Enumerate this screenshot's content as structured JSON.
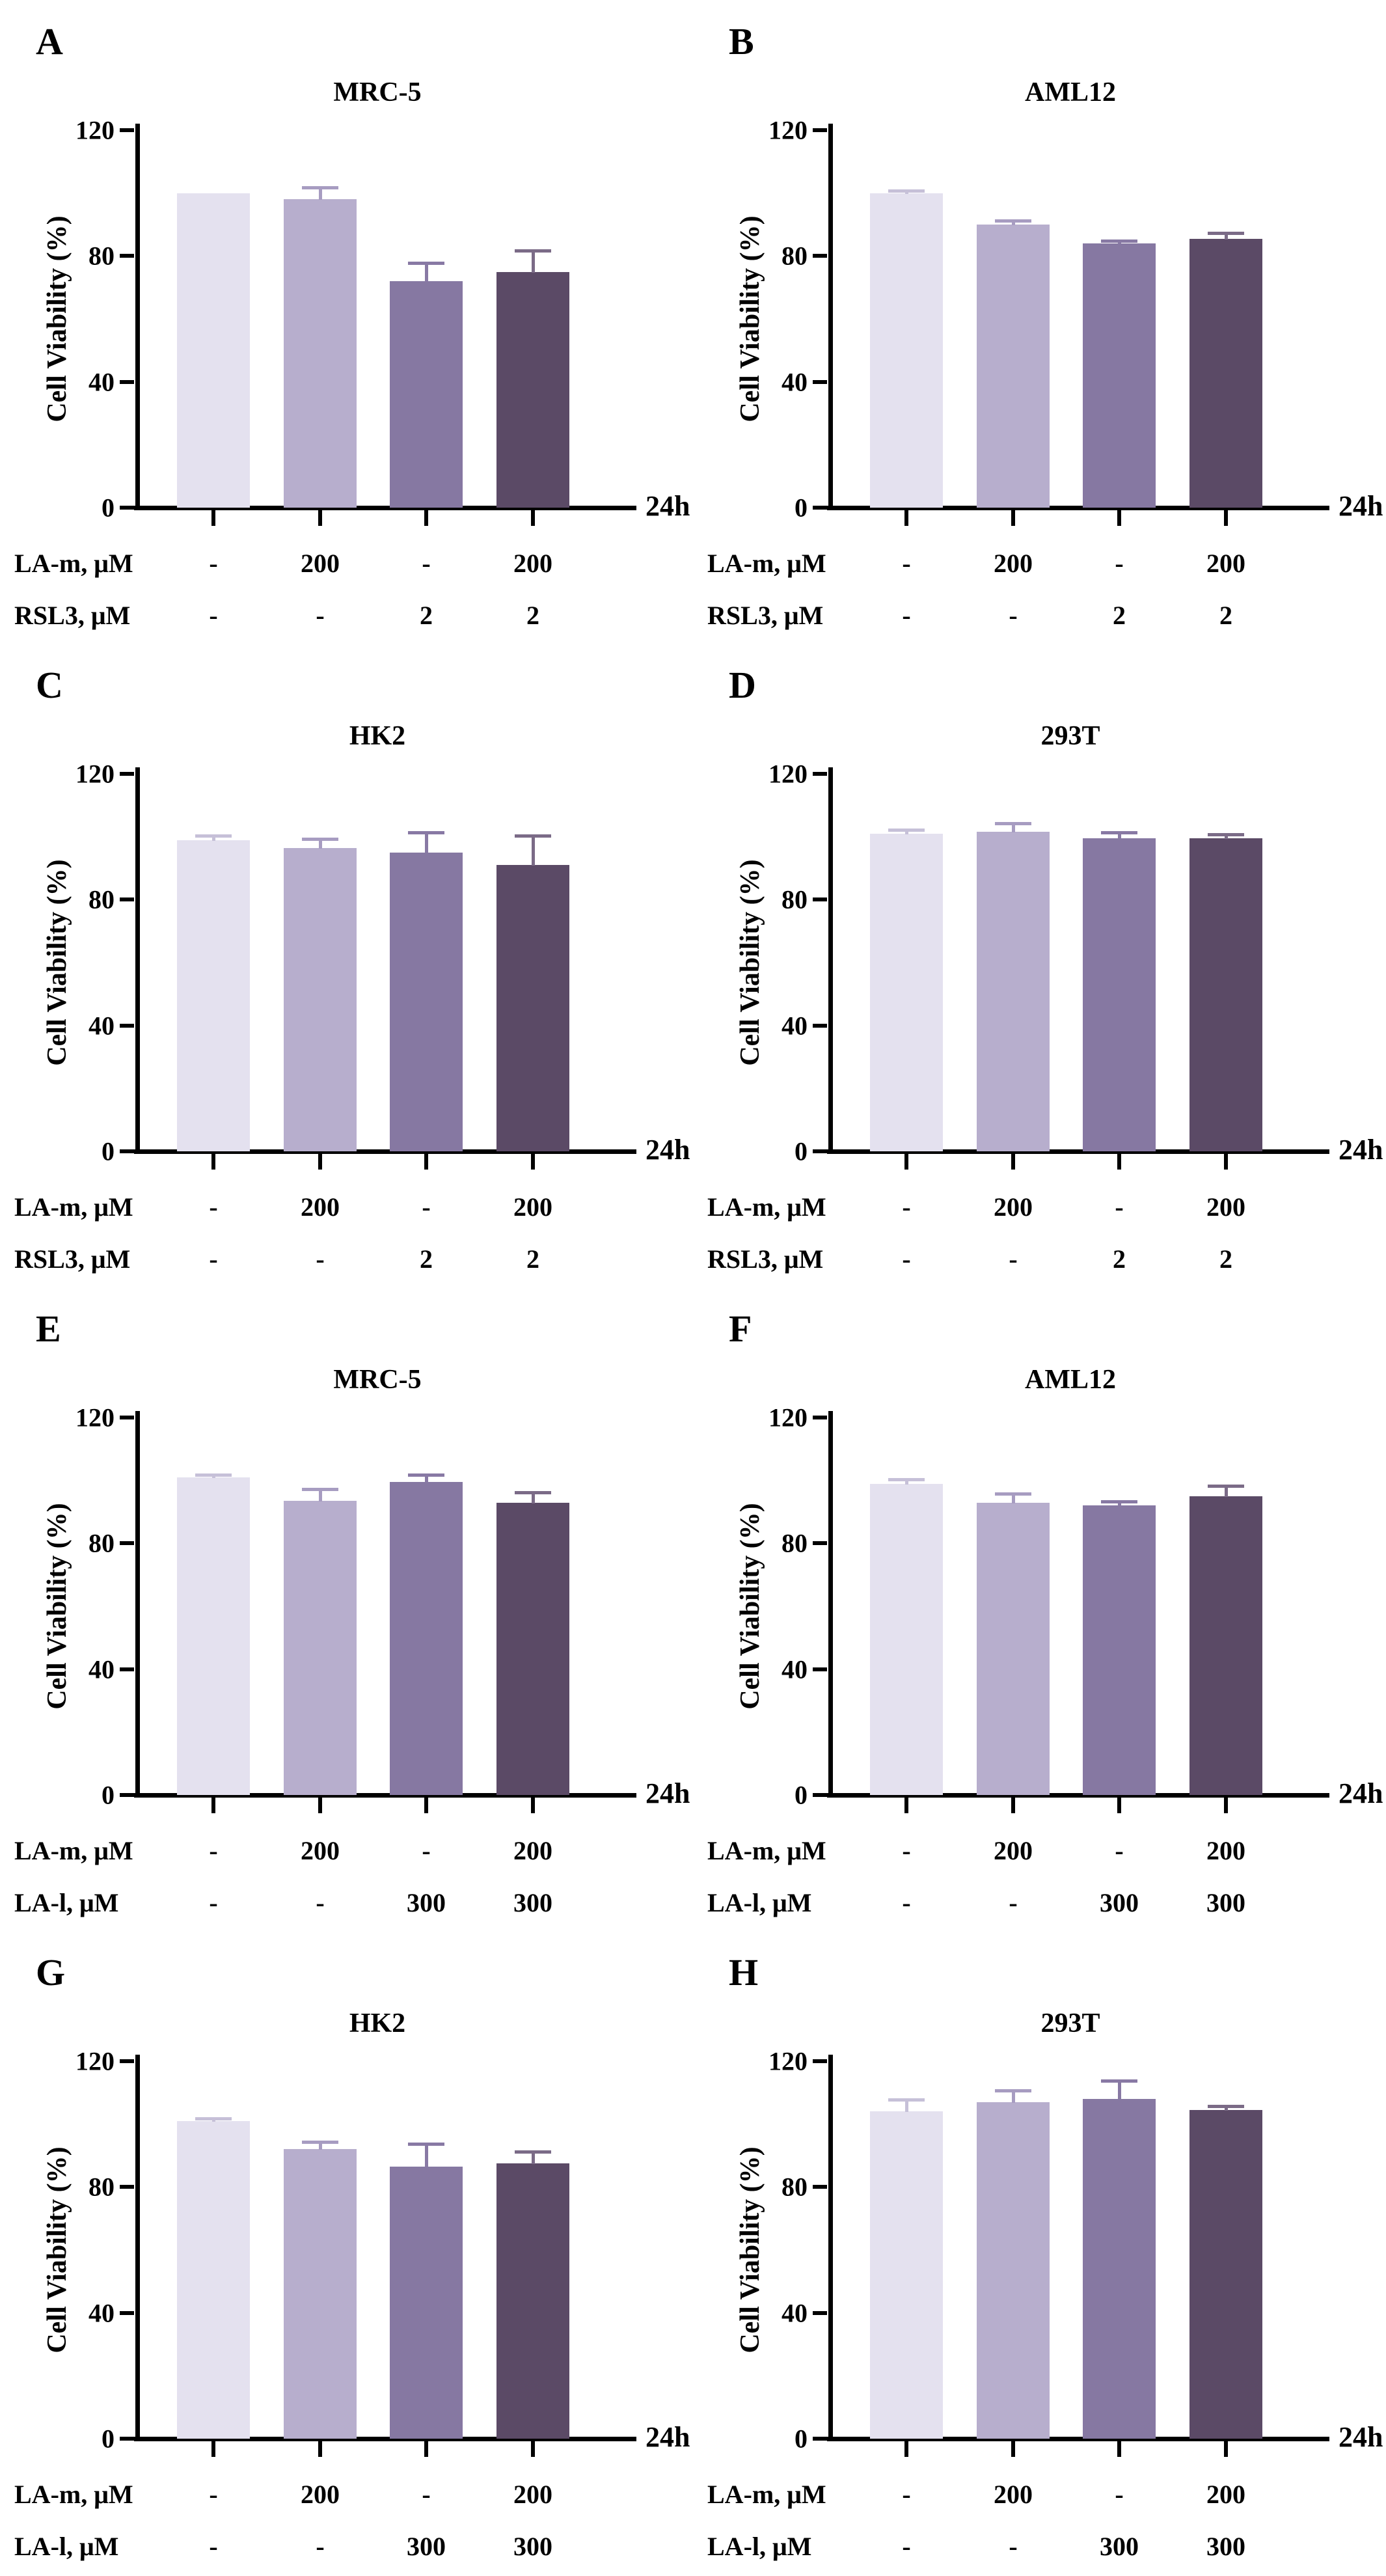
{
  "axis": {
    "ylabel": "Cell Viability (%)",
    "ytick_labels": [
      "120",
      "80",
      "40",
      "0"
    ],
    "time_label": "24h"
  },
  "bar_colors": [
    "#e4e1ef",
    "#b7aecd",
    "#8678a2",
    "#5b4a66"
  ],
  "error_colors": [
    "#c6c0d8",
    "#a79cc1",
    "#8879a4",
    "#7b6b87"
  ],
  "chart_data": [
    {
      "panel": "A",
      "type": "bar",
      "title": "MRC-5",
      "ylabel": "Cell Viability (%)",
      "ylim": [
        0,
        120
      ],
      "yticks": [
        0,
        40,
        80,
        120
      ],
      "x_time_label": "24h",
      "categories": [
        "control",
        "LA-m 200",
        "RSL3 2",
        "LA-m 200 + RSL3 2"
      ],
      "values": [
        100,
        98,
        72,
        75
      ],
      "errors": [
        0,
        4,
        6,
        7
      ],
      "dose_rows": [
        {
          "label": "LA-m, μM",
          "values": [
            "-",
            "200",
            "-",
            "200"
          ]
        },
        {
          "label": "RSL3, μM",
          "values": [
            "-",
            "-",
            "2",
            "2"
          ]
        }
      ]
    },
    {
      "panel": "B",
      "type": "bar",
      "title": "AML12",
      "ylabel": "Cell Viability (%)",
      "ylim": [
        0,
        120
      ],
      "yticks": [
        0,
        40,
        80,
        120
      ],
      "x_time_label": "24h",
      "categories": [
        "control",
        "LA-m 200",
        "RSL3 2",
        "LA-m 200 + RSL3 2"
      ],
      "values": [
        100,
        90,
        84,
        85.5
      ],
      "errors": [
        1,
        1.5,
        1,
        2
      ],
      "dose_rows": [
        {
          "label": "LA-m, μM",
          "values": [
            "-",
            "200",
            "-",
            "200"
          ]
        },
        {
          "label": "RSL3, μM",
          "values": [
            "-",
            "-",
            "2",
            "2"
          ]
        }
      ]
    },
    {
      "panel": "C",
      "type": "bar",
      "title": "HK2",
      "ylabel": "Cell Viability (%)",
      "ylim": [
        0,
        120
      ],
      "yticks": [
        0,
        40,
        80,
        120
      ],
      "x_time_label": "24h",
      "categories": [
        "control",
        "LA-m 200",
        "RSL3 2",
        "LA-m 200 + RSL3 2"
      ],
      "values": [
        99,
        96.5,
        95,
        91
      ],
      "errors": [
        1.5,
        3,
        6.5,
        9.5
      ],
      "dose_rows": [
        {
          "label": "LA-m, μM",
          "values": [
            "-",
            "200",
            "-",
            "200"
          ]
        },
        {
          "label": "RSL3, μM",
          "values": [
            "-",
            "-",
            "2",
            "2"
          ]
        }
      ]
    },
    {
      "panel": "D",
      "type": "bar",
      "title": "293T",
      "ylabel": "Cell Viability (%)",
      "ylim": [
        0,
        120
      ],
      "yticks": [
        0,
        40,
        80,
        120
      ],
      "x_time_label": "24h",
      "categories": [
        "control",
        "LA-m 200",
        "RSL3 2",
        "LA-m 200 + RSL3 2"
      ],
      "values": [
        101,
        101.5,
        99.5,
        99.5
      ],
      "errors": [
        1.5,
        3,
        2,
        1.5
      ],
      "dose_rows": [
        {
          "label": "LA-m, μM",
          "values": [
            "-",
            "200",
            "-",
            "200"
          ]
        },
        {
          "label": "RSL3, μM",
          "values": [
            "-",
            "-",
            "2",
            "2"
          ]
        }
      ]
    },
    {
      "panel": "E",
      "type": "bar",
      "title": "MRC-5",
      "ylabel": "Cell Viability (%)",
      "ylim": [
        0,
        120
      ],
      "yticks": [
        0,
        40,
        80,
        120
      ],
      "x_time_label": "24h",
      "categories": [
        "control",
        "LA-m 200",
        "LA-l 300",
        "LA-m 200 + LA-l 300"
      ],
      "values": [
        101,
        93.5,
        99.5,
        93
      ],
      "errors": [
        1,
        4,
        2.5,
        3.5
      ],
      "dose_rows": [
        {
          "label": "LA-m, μM",
          "values": [
            "-",
            "200",
            "-",
            "200"
          ]
        },
        {
          "label": "LA-l, μM",
          "values": [
            "-",
            "-",
            "300",
            "300"
          ]
        }
      ]
    },
    {
      "panel": "F",
      "type": "bar",
      "title": "AML12",
      "ylabel": "Cell Viability (%)",
      "ylim": [
        0,
        120
      ],
      "yticks": [
        0,
        40,
        80,
        120
      ],
      "x_time_label": "24h",
      "categories": [
        "control",
        "LA-m 200",
        "LA-l 300",
        "LA-m 200 + LA-l 300"
      ],
      "values": [
        99,
        93,
        92,
        95
      ],
      "errors": [
        1.5,
        3,
        1.5,
        3.5
      ],
      "dose_rows": [
        {
          "label": "LA-m, μM",
          "values": [
            "-",
            "200",
            "-",
            "200"
          ]
        },
        {
          "label": "LA-l, μM",
          "values": [
            "-",
            "-",
            "300",
            "300"
          ]
        }
      ]
    },
    {
      "panel": "G",
      "type": "bar",
      "title": "HK2",
      "ylabel": "Cell Viability (%)",
      "ylim": [
        0,
        120
      ],
      "yticks": [
        0,
        40,
        80,
        120
      ],
      "x_time_label": "24h",
      "categories": [
        "control",
        "LA-m 200",
        "LA-l 300",
        "LA-m 200 + LA-l 300"
      ],
      "values": [
        101,
        92,
        86.5,
        87.5
      ],
      "errors": [
        1,
        2.5,
        7.5,
        4
      ],
      "dose_rows": [
        {
          "label": "LA-m, μM",
          "values": [
            "-",
            "200",
            "-",
            "200"
          ]
        },
        {
          "label": "LA-l, μM",
          "values": [
            "-",
            "-",
            "300",
            "300"
          ]
        }
      ]
    },
    {
      "panel": "H",
      "type": "bar",
      "title": "293T",
      "ylabel": "Cell Viability (%)",
      "ylim": [
        0,
        120
      ],
      "yticks": [
        0,
        40,
        80,
        120
      ],
      "x_time_label": "24h",
      "categories": [
        "control",
        "LA-m 200",
        "LA-l 300",
        "LA-m 200 + LA-l 300"
      ],
      "values": [
        104,
        107,
        108,
        104.5
      ],
      "errors": [
        4,
        4,
        6,
        1.5
      ],
      "dose_rows": [
        {
          "label": "LA-m, μM",
          "values": [
            "-",
            "200",
            "-",
            "200"
          ]
        },
        {
          "label": "LA-l, μM",
          "values": [
            "-",
            "-",
            "300",
            "300"
          ]
        }
      ]
    }
  ]
}
